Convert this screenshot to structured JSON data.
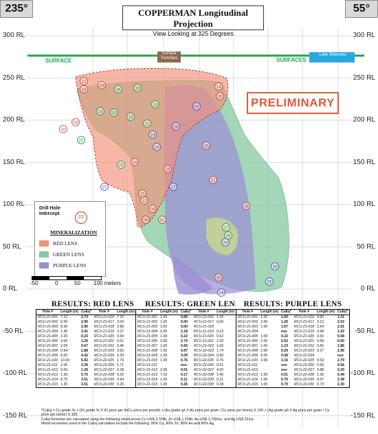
{
  "header": {
    "left_bearing": "235°",
    "right_bearing": "55°",
    "title": "COPPERMAN Longitudinal Projection",
    "subtitle": "View Looking at 325 Degrees"
  },
  "elevation_labels": [
    "300 RL",
    "250 RL",
    "200 RL",
    "150 RL",
    "100 RL",
    "50 RL",
    "0 RL",
    "-50 RL",
    "-100 RL",
    "-150 RL"
  ],
  "elevation_values": [
    300,
    250,
    200,
    150,
    100,
    50,
    0,
    -50,
    -100,
    -150
  ],
  "surface": {
    "left_label": "SURFACE",
    "right_label": "SURFACES",
    "trenches_label": "Surface Trenches",
    "lake_label": "Lake Wekusko"
  },
  "stamp": "PRELIMINARY",
  "legend": {
    "drill_label": "Drill Hole Intercept",
    "drill_sample": "22",
    "mineralization_title": "MINERALIZATION",
    "items": [
      {
        "label": "RED LENS",
        "color": "#f2917a"
      },
      {
        "label": "GREEN LENS",
        "color": "#84c9a0"
      },
      {
        "label": "PURPLE LENS",
        "color": "#9b8fd6"
      }
    ]
  },
  "scale_bar": {
    "ticks": [
      "-50",
      "0",
      "50",
      "100 meters"
    ]
  },
  "colors": {
    "surface_line": "#1aa84a",
    "red_lens": "#f2917a",
    "green_lens": "#84c9a0",
    "purple_lens": "#9b8fd6",
    "lake": "#29a8e0",
    "trench": "#8b6a4f",
    "stamp": "#e05a3a"
  },
  "intercepts": [
    {
      "label": "22",
      "color": "red"
    },
    {
      "label": "23",
      "color": "red"
    },
    {
      "label": "18",
      "color": "green"
    },
    {
      "label": "19",
      "color": "green"
    },
    {
      "label": "18",
      "color": "red"
    },
    {
      "label": "24",
      "color": "red"
    },
    {
      "label": "26",
      "color": "red"
    },
    {
      "label": "13",
      "color": "green"
    },
    {
      "label": "14",
      "color": "green"
    },
    {
      "label": "20",
      "color": "green"
    },
    {
      "label": "15",
      "color": "green"
    },
    {
      "label": "09",
      "color": "purple"
    },
    {
      "label": "03",
      "color": "red"
    },
    {
      "label": "28",
      "color": "purple"
    },
    {
      "label": "10",
      "color": "red"
    },
    {
      "label": "21",
      "color": "green"
    },
    {
      "label": "23",
      "color": "purple"
    },
    {
      "label": "29",
      "color": "purple"
    },
    {
      "label": "22",
      "color": "green"
    },
    {
      "label": "26",
      "color": "red"
    },
    {
      "label": "21",
      "color": "red"
    },
    {
      "label": "24",
      "color": "red"
    },
    {
      "label": "25",
      "color": "green"
    },
    {
      "label": "16",
      "color": "red"
    },
    {
      "label": "27",
      "color": "purple"
    },
    {
      "label": "15",
      "color": "red"
    },
    {
      "label": "17",
      "color": "purple"
    },
    {
      "label": "12",
      "color": "red"
    },
    {
      "label": "04",
      "color": "red"
    },
    {
      "label": "06",
      "color": "red"
    },
    {
      "label": "01",
      "color": "red"
    },
    {
      "label": "29",
      "color": "red"
    },
    {
      "label": "27",
      "color": "green"
    },
    {
      "label": "28",
      "color": "green"
    },
    {
      "label": "29",
      "color": "purple"
    },
    {
      "label": "30",
      "color": "purple"
    },
    {
      "label": "30",
      "color": "red"
    },
    {
      "label": "24",
      "color": "purple"
    },
    {
      "label": "25",
      "color": "purple"
    }
  ],
  "tables": {
    "headers": [
      "Hole #",
      "Length (m)",
      "CuEq*",
      "Hole #",
      "Length (m)",
      "CuEq*"
    ],
    "red": {
      "title": "RESULTS: RED LENS",
      "rows": [
        [
          "RCU-21-001",
          "7.12",
          "2.73",
          "RCU-21-016",
          "7.10",
          "2.63"
        ],
        [
          "RCU-21-002",
          "6.00",
          "2.90",
          "RCU-21-017",
          "3.03",
          "3.53"
        ],
        [
          "RCU-21-003",
          "8.30",
          "2.95",
          "RCU-21-018",
          "2.86",
          "3.96"
        ],
        [
          "RCU-21-004",
          "1.40",
          "3.41",
          "RCU-21-019",
          "3.37",
          "2.32"
        ],
        [
          "RCU-21-005",
          "2.20",
          "0.23",
          "RCU-21-020",
          "0.60",
          "1.97"
        ],
        [
          "RCU-21-006",
          "3.00",
          "1.26",
          "RCU-21-021",
          "0.51",
          "0.88"
        ],
        [
          "RCU-21-007",
          "2.00",
          "0.67",
          "RCU-21-022",
          "0.46",
          "1.63"
        ],
        [
          "RCU-21-008",
          "0.54",
          "1.88",
          "RCU-22-023",
          "2.62",
          "2.50"
        ],
        [
          "RCU-21-009",
          "6.00",
          "4.42",
          "RCU-22-024",
          "0.29",
          "1.62"
        ],
        [
          "RCU-21-010",
          "10.00",
          "5.92",
          "RCU-22-025",
          "1.79",
          "1.69"
        ],
        [
          "RCU-21-011",
          "2.00",
          "3.39",
          "RCU-22-026",
          "1.71",
          "1.28"
        ],
        [
          "RCU-21-012",
          "9.00",
          "1.29",
          "RCU-22-027",
          "0.28",
          "0.96"
        ],
        [
          "RCU-21-013",
          "1.20",
          "0.75",
          "RCU-22-028",
          "0.20",
          "1.37"
        ],
        [
          "RCU-21-014",
          "8.75",
          "3.51",
          "RCU-22-029",
          "0.94",
          "0.42"
        ],
        [
          "RCU-21-015",
          "1.20",
          "3.51",
          "RCU-22-030",
          "0.26",
          "0.53"
        ]
      ]
    },
    "green": {
      "title": "RESULTS: GREEN LENS",
      "rows": [
        [
          "RCU-21-001",
          "1.00",
          "0.66",
          "RCU-21-016",
          "1.10",
          "2.42"
        ],
        [
          "RCU-21-002",
          "1.00",
          "5.00",
          "RCU-21-017",
          "0.60",
          "1.64"
        ],
        [
          "RCU-21-003",
          "1.00",
          "0.00",
          "RCU-21-018",
          "",
          "nsv"
        ],
        [
          "RCU-21-004",
          "3.00",
          "2.18",
          "RCU-21-019",
          "0.23",
          "1.26"
        ],
        [
          "RCU-21-005",
          "1.00",
          "0.22",
          "RCU-21-020",
          "0.62",
          "1.18"
        ],
        [
          "RCU-21-006",
          "3.00",
          "2.79",
          "RCU-21-021",
          "2.20",
          "1.68"
        ],
        [
          "RCU-21-007",
          "1.00",
          "0.56",
          "RCU-21-022",
          "1.00",
          "1.34"
        ],
        [
          "RCU-21-008",
          "1.00",
          "0.97",
          "RCU-22-023",
          "1.74",
          "1.61"
        ],
        [
          "RCU-21-009",
          "1.00",
          "3.09",
          "RCU-22-024",
          "0.50",
          "1.50"
        ],
        [
          "RCU-21-010",
          "1.00",
          "0.76",
          "RCU-22-025",
          "0.76",
          "0.72"
        ],
        [
          "RCU-21-011",
          "",
          "nsv",
          "RCU-22-026",
          "0.51",
          "1.82"
        ],
        [
          "RCU-21-012",
          "2.95",
          "0.51",
          "RCU-22-027",
          "4.02",
          "1.50"
        ],
        [
          "RCU-21-013",
          "7.10",
          "0.17",
          "RCU-22-028",
          "1.40",
          "1.63"
        ],
        [
          "RCU-21-014",
          "1.00",
          "0.11",
          "RCU-22-029",
          "0.21",
          "0.42"
        ],
        [
          "RCU-21-015",
          "1.00",
          "0.26",
          "RCU-22-030",
          "0.34",
          "1.00"
        ]
      ]
    },
    "purple": {
      "title": "RESULTS: PURPLE LENS",
      "rows": [
        [
          "RCU-21-001",
          "1.00",
          "1.60",
          "RCU-21-016",
          "0.60",
          "1.21"
        ],
        [
          "RCU-21-002",
          "2.00",
          "1.26",
          "RCU-21-017",
          "3.13",
          "2.52"
        ],
        [
          "RCU-21-003",
          "1.00",
          "1.67",
          "RCU-21-018",
          "1.64",
          "2.01"
        ],
        [
          "RCU-21-004",
          "",
          "nsv",
          "RCU-21-019",
          "0.98",
          "1.02"
        ],
        [
          "RCU-21-005",
          "1.00",
          "0.22",
          "RCU-21-020",
          "0.50",
          "0.58"
        ],
        [
          "RCU-21-006",
          "2.00",
          "0.52",
          "RCU-21-021",
          "0.59",
          "0.60"
        ],
        [
          "RCU-21-007",
          "1.00",
          "1.23",
          "RCU-21-022",
          "0.66",
          "1.86"
        ],
        [
          "RCU-21-008",
          "2.00",
          "0.29",
          "RCU-22-023",
          "0.27",
          "2.95"
        ],
        [
          "RCU-21-009",
          "3.00",
          "0.58",
          "RCU-22-024",
          "",
          "nsv"
        ],
        [
          "RCU-21-010",
          "1.00",
          "1.16",
          "RCU-22-025",
          "0.53",
          "2.79"
        ],
        [
          "RCU-21-011",
          "",
          "nsv",
          "RCU-22-026",
          "0.56",
          "4.56"
        ],
        [
          "RCU-21-012",
          "",
          "nsv",
          "RCU-22-027",
          "0.88",
          "0.30"
        ],
        [
          "RCU-21-013",
          "1.00",
          "0.51",
          "RCU-22-028",
          "1.35",
          "5.49"
        ],
        [
          "RCU-21-014",
          "1.00",
          "0.75",
          "RCU-22-029",
          "0.57",
          "2.38"
        ],
        [
          "RCU-21-015",
          "1.00",
          "0.70",
          "RCU-22-030",
          "0.73",
          "2.30"
        ]
      ]
    }
  },
  "footnote": [
    "*CuEq = Cu grade % + (Zn grade % X Zn price per lb/Cu price per pound) + (Au grade g/t X Au price per gram / Cu price per tonne) X 100 + (Ag grade g/t X Ag price per gram / Cu price per tonne) X 100",
    "CuEq formulas are calculated using the following metal prices Cu US$ 3.70/lb, Zn US$ 1.22/lb, Au US$ 1,750/oz, and Ag US$ 22/oz.",
    "Metal recoveries used in the CuEq calculation include the following: 95% Cu, 80% Zn, 80% Au and 80% Ag."
  ]
}
